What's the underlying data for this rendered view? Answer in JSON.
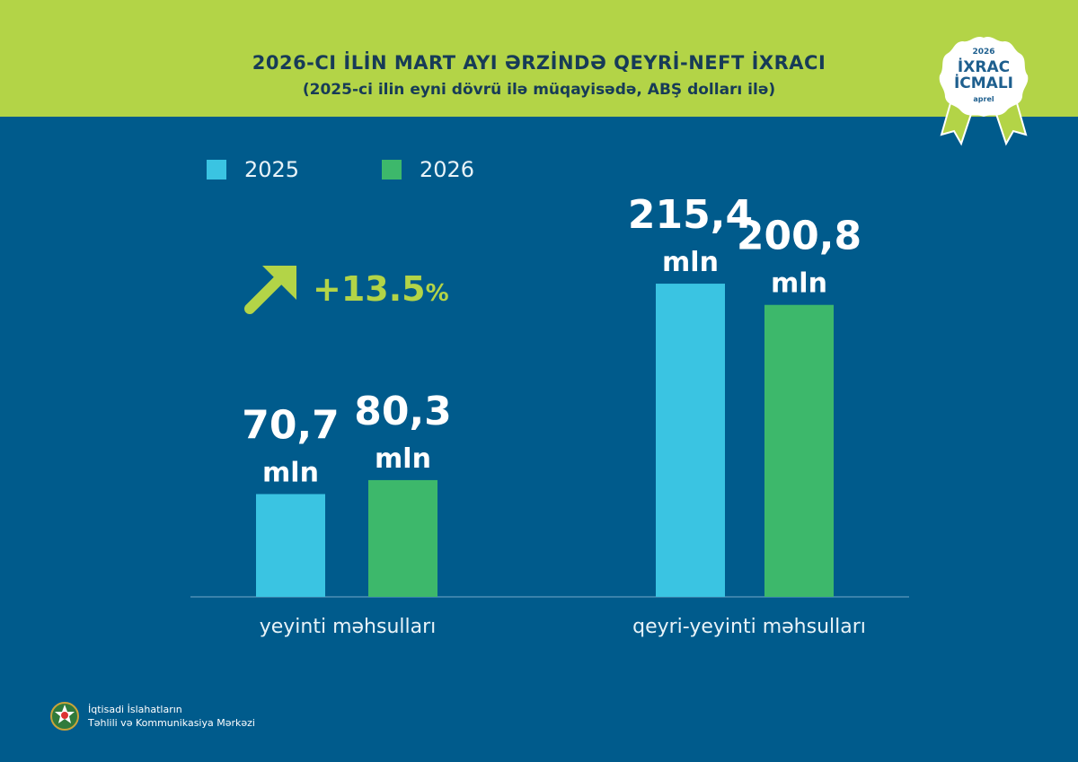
{
  "header": {
    "title": "2026-CI İLİN MART AYI ƏRZİNDƏ QEYRİ-NEFT İXRACI",
    "subtitle": "(2025-ci ilin eyni dövrü ilə müqayisədə, ABŞ dolları ilə)"
  },
  "badge": {
    "year": "2026",
    "line1": "İXRAC",
    "line2": "İCMALI",
    "month": "aprel"
  },
  "growth": {
    "value": "+13.5",
    "unit": "%",
    "icon": "arrow-up-right-icon"
  },
  "footer": {
    "line1": "İqtisadi İslahatların",
    "line2": "Təhlili və Kommunikasiya Mərkəzi"
  },
  "colors": {
    "background": "#005b8c",
    "banner": "#b3d447",
    "series_2025": "#3ac4e2",
    "series_2026": "#3db86b",
    "title": "#173b57"
  },
  "chart_data": {
    "type": "bar",
    "categories": [
      "yeyinti məhsulları",
      "qeyri-yeyinti məhsulları"
    ],
    "series": [
      {
        "name": "2025",
        "values": [
          70.7,
          215.4
        ],
        "labels": [
          "70,7",
          "215,4"
        ]
      },
      {
        "name": "2026",
        "values": [
          80.3,
          200.8
        ],
        "labels": [
          "80,3",
          "200,8"
        ]
      }
    ],
    "unit": "mln",
    "legend": "top-left",
    "grid": false
  }
}
